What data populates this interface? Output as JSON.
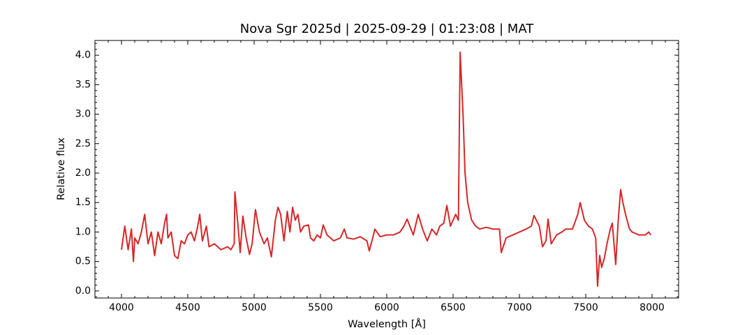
{
  "chart_data": {
    "type": "line",
    "title": "Nova Sgr 2025d | 2025-09-29 | 01:23:08 | MAT",
    "xlabel": "Wavelength [Å]",
    "ylabel": "Relative flux",
    "xlim": [
      3800,
      8200
    ],
    "ylim": [
      -0.12,
      4.25
    ],
    "xticks": [
      4000,
      4500,
      5000,
      5500,
      6000,
      6500,
      7000,
      7500,
      8000
    ],
    "yticks": [
      {
        "value": 0,
        "label": "0.0"
      },
      0.5,
      {
        "value": 1,
        "label": "1.0"
      },
      1.5,
      {
        "value": 2,
        "label": "2.0"
      },
      2.5,
      {
        "value": 3,
        "label": "3.0"
      },
      3.5,
      {
        "value": 4,
        "label": "4.0"
      }
    ],
    "xminorticks": [
      3900,
      4100,
      4200,
      4300,
      4400,
      4600,
      4700,
      4800,
      4900,
      5100,
      5200,
      5300,
      5400,
      5600,
      5700,
      5800,
      5900,
      6100,
      6200,
      6300,
      6400,
      6600,
      6700,
      6800,
      6900,
      7100,
      7200,
      7300,
      7400,
      7600,
      7700,
      7800,
      7900,
      8100
    ],
    "yminorticks": [
      -0.1,
      0.1,
      0.2,
      0.3,
      0.4,
      0.6,
      0.7,
      0.8,
      0.9,
      1.1,
      1.2,
      1.3,
      1.4,
      1.6,
      1.7,
      1.8,
      1.9,
      2.1,
      2.2,
      2.3,
      2.4,
      2.6,
      2.7,
      2.8,
      2.9,
      3.1,
      3.2,
      3.3,
      3.4,
      3.6,
      3.7,
      3.8,
      3.9,
      4.1,
      4.2
    ],
    "color": "#d62728",
    "grid": false,
    "x": [
      4000,
      4025,
      4050,
      4075,
      4090,
      4100,
      4125,
      4150,
      4175,
      4200,
      4225,
      4250,
      4275,
      4300,
      4325,
      4340,
      4350,
      4375,
      4400,
      4425,
      4450,
      4475,
      4500,
      4525,
      4550,
      4575,
      4590,
      4610,
      4640,
      4660,
      4700,
      4750,
      4800,
      4825,
      4850,
      4855,
      4875,
      4895,
      4915,
      4940,
      4965,
      4985,
      5010,
      5040,
      5075,
      5100,
      5130,
      5160,
      5180,
      5200,
      5225,
      5250,
      5270,
      5290,
      5310,
      5330,
      5350,
      5375,
      5410,
      5425,
      5450,
      5475,
      5500,
      5521,
      5550,
      5600,
      5650,
      5680,
      5700,
      5750,
      5800,
      5850,
      5868,
      5900,
      5910,
      5950,
      6000,
      6050,
      6100,
      6130,
      6153,
      6200,
      6237,
      6270,
      6305,
      6340,
      6375,
      6400,
      6430,
      6453,
      6480,
      6520,
      6540,
      6553,
      6575,
      6590,
      6610,
      6640,
      6670,
      6700,
      6750,
      6800,
      6850,
      6863,
      6900,
      6950,
      7000,
      7050,
      7090,
      7110,
      7150,
      7174,
      7200,
      7216,
      7240,
      7280,
      7320,
      7350,
      7400,
      7440,
      7458,
      7490,
      7520,
      7550,
      7575,
      7589,
      7605,
      7620,
      7640,
      7660,
      7685,
      7700,
      7726,
      7745,
      7763,
      7780,
      7800,
      7830,
      7850,
      7900,
      7950,
      7975,
      7990
    ],
    "values": [
      0.7,
      1.1,
      0.7,
      1.05,
      0.5,
      0.9,
      0.8,
      1.0,
      1.3,
      0.8,
      1.0,
      0.6,
      1.0,
      0.8,
      1.15,
      1.3,
      0.9,
      1.0,
      0.6,
      0.55,
      0.85,
      0.8,
      0.95,
      1.0,
      0.85,
      1.1,
      1.3,
      0.85,
      1.1,
      0.75,
      0.8,
      0.7,
      0.75,
      0.7,
      0.8,
      1.68,
      1.2,
      0.65,
      1.27,
      0.9,
      0.62,
      0.8,
      1.38,
      1.0,
      0.8,
      0.9,
      0.58,
      1.2,
      1.42,
      1.3,
      0.85,
      1.35,
      1.0,
      1.42,
      1.2,
      1.3,
      1.0,
      1.1,
      1.12,
      0.9,
      0.85,
      0.95,
      0.9,
      1.12,
      0.95,
      0.85,
      0.9,
      1.05,
      0.9,
      0.88,
      0.92,
      0.85,
      0.68,
      0.95,
      1.05,
      0.92,
      0.95,
      0.95,
      1.0,
      1.1,
      1.22,
      0.95,
      1.3,
      1.05,
      0.85,
      1.05,
      0.95,
      1.1,
      1.15,
      1.45,
      1.1,
      1.3,
      1.2,
      4.05,
      3.0,
      2.0,
      1.5,
      1.2,
      1.1,
      1.05,
      1.08,
      1.05,
      1.05,
      0.65,
      0.9,
      0.95,
      1.0,
      1.05,
      1.1,
      1.28,
      1.1,
      0.75,
      0.85,
      1.22,
      0.8,
      0.95,
      1.0,
      1.05,
      1.05,
      1.3,
      1.5,
      1.2,
      1.1,
      1.05,
      0.9,
      0.08,
      0.6,
      0.4,
      0.55,
      0.8,
      1.05,
      1.15,
      0.45,
      1.2,
      1.72,
      1.5,
      1.3,
      1.05,
      1.0,
      0.95,
      0.95,
      1.0,
      0.95
    ]
  }
}
